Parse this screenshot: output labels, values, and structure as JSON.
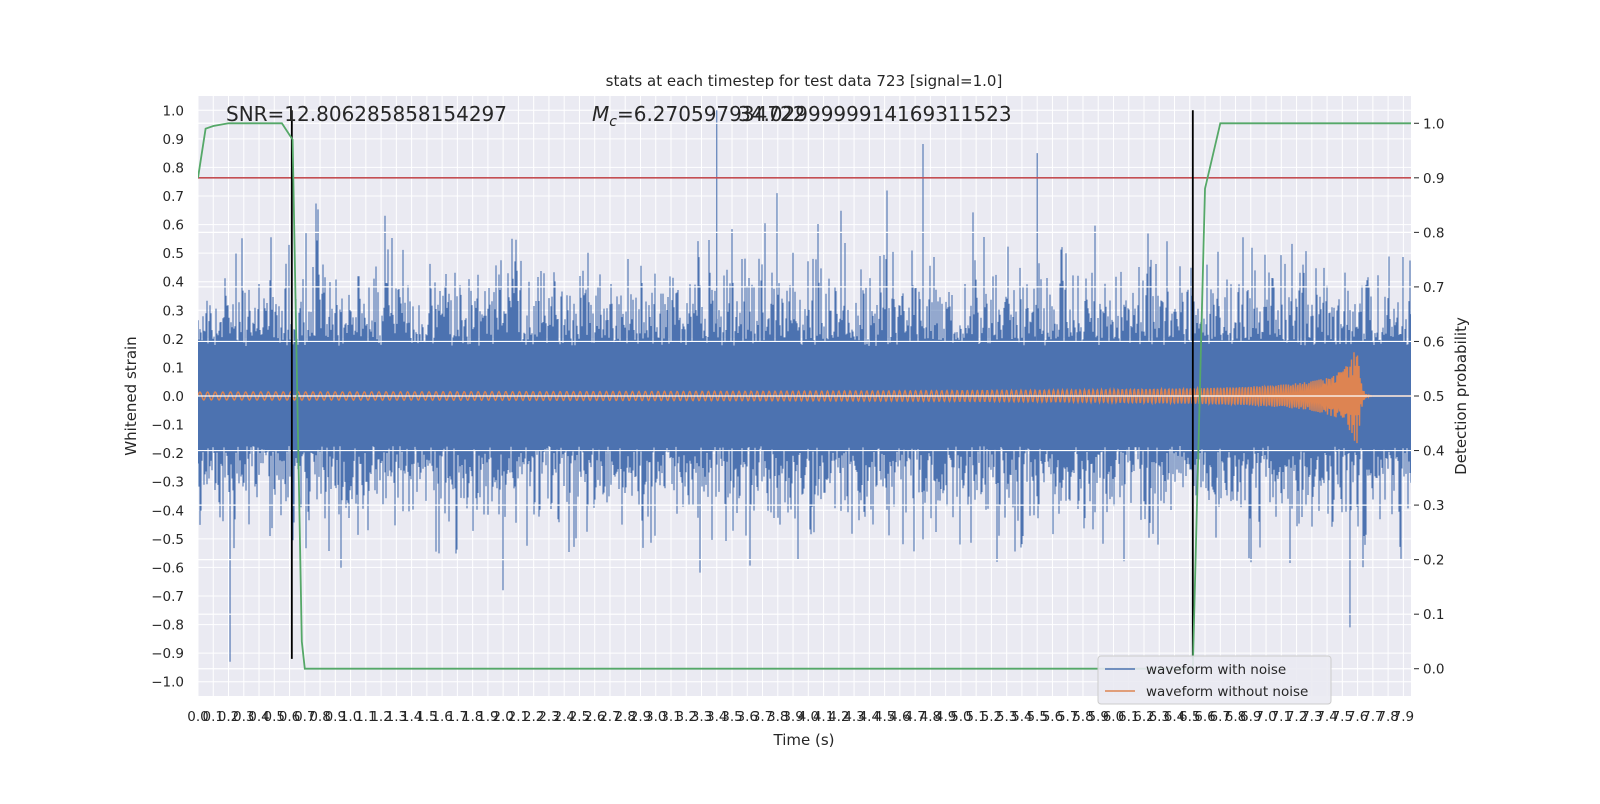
{
  "chart_data": {
    "type": "line",
    "title": "stats at each timestep for test data 723 [signal=1.0]",
    "annotations": {
      "snr": "SNR=12.806285858154297",
      "mc_symbol": "M",
      "mc_subscript": "c",
      "mc_value": "=6.270597934722",
      "overlap": "34.0299999914169311523"
    },
    "xlabel": "Time (s)",
    "ylabel_left": "Whitened strain",
    "ylabel_right": "Detection probability",
    "xlim": [
      0.0,
      7.95
    ],
    "ylim_left": [
      -1.05,
      1.05
    ],
    "ylim_right": [
      -0.05,
      1.05
    ],
    "x_ticks": [
      "0.0",
      "0.1",
      "0.2",
      "0.3",
      "0.4",
      "0.5",
      "0.6",
      "0.7",
      "0.8",
      "0.9",
      "1.0",
      "1.1",
      "1.2",
      "1.3",
      "1.4",
      "1.5",
      "1.6",
      "1.7",
      "1.8",
      "1.9",
      "2.0",
      "2.1",
      "2.2",
      "2.3",
      "2.4",
      "2.5",
      "2.6",
      "2.7",
      "2.8",
      "2.9",
      "3.0",
      "3.1",
      "3.2",
      "3.3",
      "3.4",
      "3.5",
      "3.6",
      "3.7",
      "3.8",
      "3.9",
      "4.0",
      "4.1",
      "4.2",
      "4.3",
      "4.4",
      "4.5",
      "4.6",
      "4.7",
      "4.8",
      "4.9",
      "5.0",
      "5.1",
      "5.2",
      "5.3",
      "5.4",
      "5.5",
      "5.6",
      "5.7",
      "5.8",
      "5.9",
      "6.0",
      "6.1",
      "6.2",
      "6.3",
      "6.4",
      "6.5",
      "6.6",
      "6.7",
      "6.8",
      "6.9",
      "7.0",
      "7.1",
      "7.2",
      "7.3",
      "7.4",
      "7.5",
      "7.6",
      "7.7",
      "7.8",
      "7.9"
    ],
    "y_ticks_left": [
      "1.0",
      "0.9",
      "0.8",
      "0.7",
      "0.6",
      "0.5",
      "0.4",
      "0.3",
      "0.2",
      "0.1",
      "0.0",
      "−0.1",
      "−0.2",
      "−0.3",
      "−0.4",
      "−0.5",
      "−0.6",
      "−0.7",
      "−0.8",
      "−0.9",
      "−1.0"
    ],
    "y_ticks_right": [
      "1.0",
      "0.9",
      "0.8",
      "0.7",
      "0.6",
      "0.5",
      "0.4",
      "0.3",
      "0.2",
      "0.1",
      "0.0"
    ],
    "threshold_line": {
      "value": 0.9,
      "axis": "right",
      "color": "#c44e52"
    },
    "event_lines": [
      {
        "x": 0.615,
        "y_from": -0.92,
        "y_to": 1.0,
        "color": "#000000"
      },
      {
        "x": 6.52,
        "y_from": -0.92,
        "y_to": 1.0,
        "color": "#000000"
      }
    ],
    "detection_probability": {
      "name": "detection probability",
      "color": "#55a868",
      "x": [
        0.0,
        0.05,
        0.1,
        0.2,
        0.3,
        0.4,
        0.55,
        0.62,
        0.68,
        0.7,
        1.0,
        2.0,
        3.0,
        4.0,
        5.0,
        6.0,
        6.48,
        6.52,
        6.6,
        6.7,
        6.8,
        7.0,
        7.5,
        7.95
      ],
      "y": [
        0.9,
        0.99,
        0.995,
        1.0,
        1.0,
        1.0,
        1.0,
        0.97,
        0.05,
        0.0,
        0.0,
        0.0,
        0.0,
        0.0,
        0.0,
        0.0,
        0.0,
        0.0,
        0.88,
        1.0,
        1.0,
        1.0,
        1.0,
        1.0
      ]
    },
    "series": [
      {
        "name": "waveform with noise",
        "color": "#4c72b0",
        "noise_amplitude": 0.5,
        "peak": 1.0,
        "trough": -0.93
      },
      {
        "name": "waveform without noise",
        "color": "#dd8452",
        "start_amplitude": 0.01,
        "peak_amplitude": 0.22,
        "merger_time": 7.6
      }
    ],
    "legend": {
      "position": "lower-right",
      "entries": [
        "waveform with noise",
        "waveform without noise"
      ]
    },
    "grid": true,
    "colors": {
      "axes_bg": "#eaeaf2",
      "grid": "#ffffff"
    }
  }
}
